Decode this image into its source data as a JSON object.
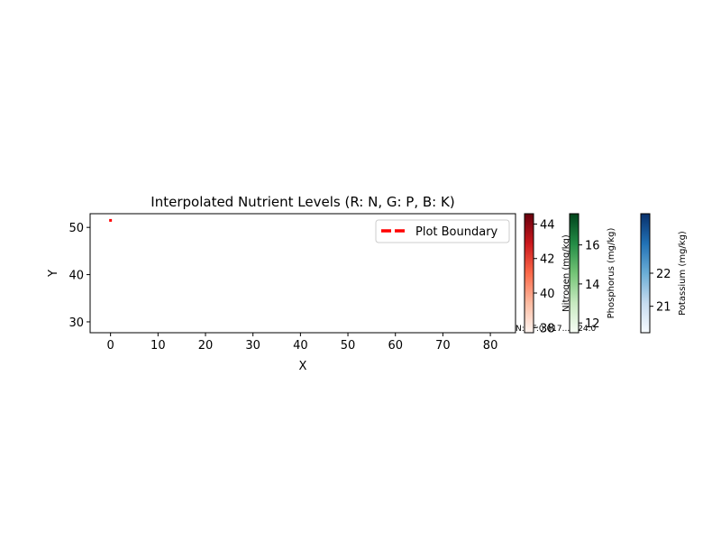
{
  "chart_data": {
    "type": "heatmap",
    "title": "Interpolated Nutrient Levels (R: N, G: P, B: K)",
    "xlabel": "X",
    "ylabel": "Y",
    "xlim": [
      -4.3,
      85.3
    ],
    "ylim": [
      27.7,
      52.9
    ],
    "xticks": [
      0,
      10,
      20,
      30,
      40,
      50,
      60,
      70,
      80
    ],
    "yticks": [
      30,
      40,
      50
    ],
    "grid": false,
    "legend": {
      "position": "top-right",
      "entries": [
        "Plot Boundary"
      ]
    },
    "series": [
      {
        "name": "Plot Boundary",
        "style": "dashed",
        "color": "#ff0000",
        "x": [
          0,
          0
        ],
        "y": [
          51.2,
          51.8
        ]
      }
    ],
    "annotation": "N: 4F:0.617...K:24.0",
    "colorbars": [
      {
        "label": "Nitrogen (mg/kg)",
        "cmap": "Reds",
        "range": [
          37.7,
          44.6
        ],
        "ticks": [
          38,
          40,
          42,
          44
        ]
      },
      {
        "label": "Phosphorus (mg/kg)",
        "cmap": "Greens",
        "range": [
          11.5,
          17.6
        ],
        "ticks": [
          12,
          14,
          16
        ]
      },
      {
        "label": "Potassium (mg/kg)",
        "cmap": "Blues",
        "range": [
          20.2,
          23.8
        ],
        "ticks": [
          21,
          22
        ]
      }
    ]
  }
}
